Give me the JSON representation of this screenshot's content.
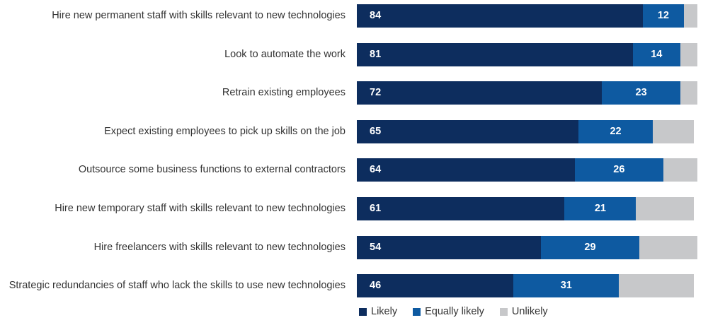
{
  "chart_data": {
    "type": "bar",
    "orientation": "horizontal",
    "stacked": true,
    "title": "",
    "xlabel": "",
    "ylabel": "",
    "xlim": [
      0,
      100
    ],
    "grid": false,
    "legend_position": "bottom",
    "categories": [
      "Hire new permanent staff with skills relevant to new technologies",
      "Look to automate the work",
      "Retrain existing employees",
      "Expect existing employees to pick up skills on the job",
      "Outsource some business functions to external contractors",
      "Hire new temporary staff with skills relevant to new technologies",
      "Hire freelancers with skills relevant to new technologies",
      "Strategic redundancies of staff who lack the skills to use new technologies"
    ],
    "series": [
      {
        "name": "Likely",
        "color": "#0d2d5e",
        "values": [
          84,
          81,
          72,
          65,
          64,
          61,
          54,
          46
        ],
        "value_labels": [
          "84",
          "81",
          "72",
          "65",
          "64",
          "61",
          "54",
          "46"
        ]
      },
      {
        "name": "Equally likely",
        "color": "#0e5aa1",
        "values": [
          12,
          14,
          23,
          22,
          26,
          21,
          29,
          31
        ],
        "value_labels": [
          "12",
          "14",
          "23",
          "22",
          "26",
          "21",
          "29",
          "31"
        ]
      },
      {
        "name": "Unlikely",
        "color": "#c7c8ca",
        "values": [
          4,
          5,
          5,
          12,
          10,
          17,
          17,
          22
        ]
      }
    ]
  }
}
